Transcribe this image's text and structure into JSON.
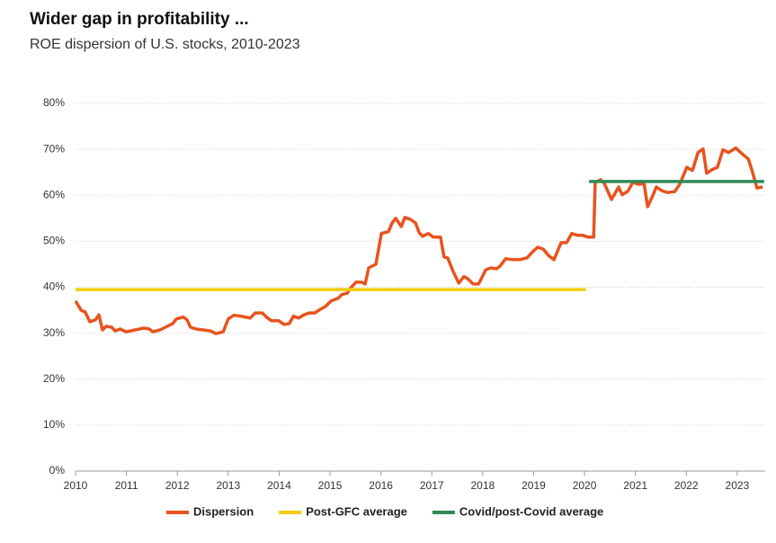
{
  "chart_data": {
    "type": "line",
    "title": "Wider gap in profitability ...",
    "subtitle": "ROE dispersion of U.S. stocks, 2010-2023",
    "xlim": [
      2010,
      2023.55
    ],
    "xticks": [
      2010,
      2011,
      2012,
      2013,
      2014,
      2015,
      2016,
      2017,
      2018,
      2019,
      2020,
      2021,
      2022,
      2023
    ],
    "ylim": [
      0,
      80
    ],
    "yticks": [
      {
        "value": 0,
        "label": "0%"
      },
      {
        "value": 10,
        "label": "10%"
      },
      {
        "value": 20,
        "label": "20%"
      },
      {
        "value": 30,
        "label": "30%"
      },
      {
        "value": 40,
        "label": "40%"
      },
      {
        "value": 50,
        "label": "50%"
      },
      {
        "value": 60,
        "label": "60%"
      },
      {
        "value": 70,
        "label": "70%"
      },
      {
        "value": 80,
        "label": "80%"
      }
    ],
    "grid": true,
    "legend": "bottom",
    "series": [
      {
        "name": "Dispersion",
        "color": "#e8531e",
        "x": [
          2010.0,
          2010.11,
          2010.19,
          2010.28,
          2010.39,
          2010.46,
          2010.53,
          2010.6,
          2010.71,
          2010.78,
          2010.88,
          2010.99,
          2011.17,
          2011.34,
          2011.45,
          2011.52,
          2011.66,
          2011.8,
          2011.91,
          2011.98,
          2012.12,
          2012.19,
          2012.26,
          2012.37,
          2012.51,
          2012.65,
          2012.76,
          2012.9,
          2013.0,
          2013.11,
          2013.25,
          2013.43,
          2013.53,
          2013.67,
          2013.75,
          2013.85,
          2013.99,
          2014.1,
          2014.2,
          2014.28,
          2014.38,
          2014.49,
          2014.59,
          2014.7,
          2014.81,
          2014.91,
          2015.02,
          2015.16,
          2015.23,
          2015.34,
          2015.41,
          2015.51,
          2015.62,
          2015.69,
          2015.76,
          2015.9,
          2016.01,
          2016.15,
          2016.22,
          2016.29,
          2016.4,
          2016.47,
          2016.57,
          2016.68,
          2016.75,
          2016.82,
          2016.93,
          2017.03,
          2017.17,
          2017.24,
          2017.31,
          2017.42,
          2017.53,
          2017.63,
          2017.7,
          2017.81,
          2017.92,
          2018.06,
          2018.16,
          2018.27,
          2018.34,
          2018.45,
          2018.59,
          2018.73,
          2018.87,
          2018.98,
          2019.08,
          2019.19,
          2019.29,
          2019.4,
          2019.54,
          2019.65,
          2019.75,
          2019.86,
          2019.96,
          2020.07,
          2020.18,
          2020.21,
          2020.32,
          2020.39,
          2020.53,
          2020.67,
          2020.74,
          2020.85,
          2020.95,
          2021.06,
          2021.17,
          2021.24,
          2021.34,
          2021.41,
          2021.52,
          2021.63,
          2021.77,
          2021.87,
          2022.01,
          2022.12,
          2022.23,
          2022.33,
          2022.4,
          2022.51,
          2022.61,
          2022.72,
          2022.83,
          2022.97,
          2023.07,
          2023.22,
          2023.29,
          2023.39,
          2023.5
        ],
        "values": [
          37,
          35,
          34.6,
          32.5,
          32.9,
          34,
          30.7,
          31.5,
          31.3,
          30.5,
          30.9,
          30.3,
          30.7,
          31.1,
          30.9,
          30.3,
          30.7,
          31.5,
          32.1,
          33.1,
          33.5,
          32.9,
          31.3,
          30.9,
          30.7,
          30.5,
          29.9,
          30.3,
          33.1,
          33.9,
          33.7,
          33.3,
          34.4,
          34.4,
          33.5,
          32.7,
          32.7,
          31.9,
          32.1,
          33.7,
          33.3,
          34,
          34.4,
          34.4,
          35.2,
          35.8,
          37,
          37.6,
          38.4,
          38.7,
          39.9,
          41.1,
          41.1,
          40.7,
          44.2,
          45,
          51.7,
          52.1,
          54,
          55,
          53.2,
          55.2,
          54.8,
          54,
          51.9,
          51.1,
          51.7,
          50.9,
          50.9,
          46.6,
          46.4,
          43.4,
          40.9,
          42.3,
          41.9,
          40.7,
          40.7,
          43.8,
          44.2,
          44,
          44.6,
          46.2,
          46,
          46,
          46.4,
          47.7,
          48.7,
          48.3,
          46.9,
          46,
          49.7,
          49.7,
          51.7,
          51.3,
          51.3,
          50.9,
          50.9,
          62.8,
          63.4,
          62.6,
          59.1,
          61.8,
          60.1,
          60.9,
          62.8,
          62.4,
          62.6,
          57.5,
          59.9,
          61.8,
          61,
          60.6,
          60.8,
          62.4,
          66.1,
          65.4,
          69.3,
          70.1,
          64.8,
          65.6,
          66.1,
          69.9,
          69.3,
          70.3,
          69.3,
          67.9,
          65.4,
          61.6,
          61.8
        ]
      },
      {
        "name": "Post-GFC average",
        "color": "#f5cb0c",
        "x": [
          2010.0,
          2020.02
        ],
        "values": [
          39.5,
          39.5
        ]
      },
      {
        "name": "Covid/post-Covid average",
        "color": "#2e8b57",
        "x": [
          2020.09,
          2023.53
        ],
        "values": [
          63,
          63
        ]
      }
    ]
  }
}
